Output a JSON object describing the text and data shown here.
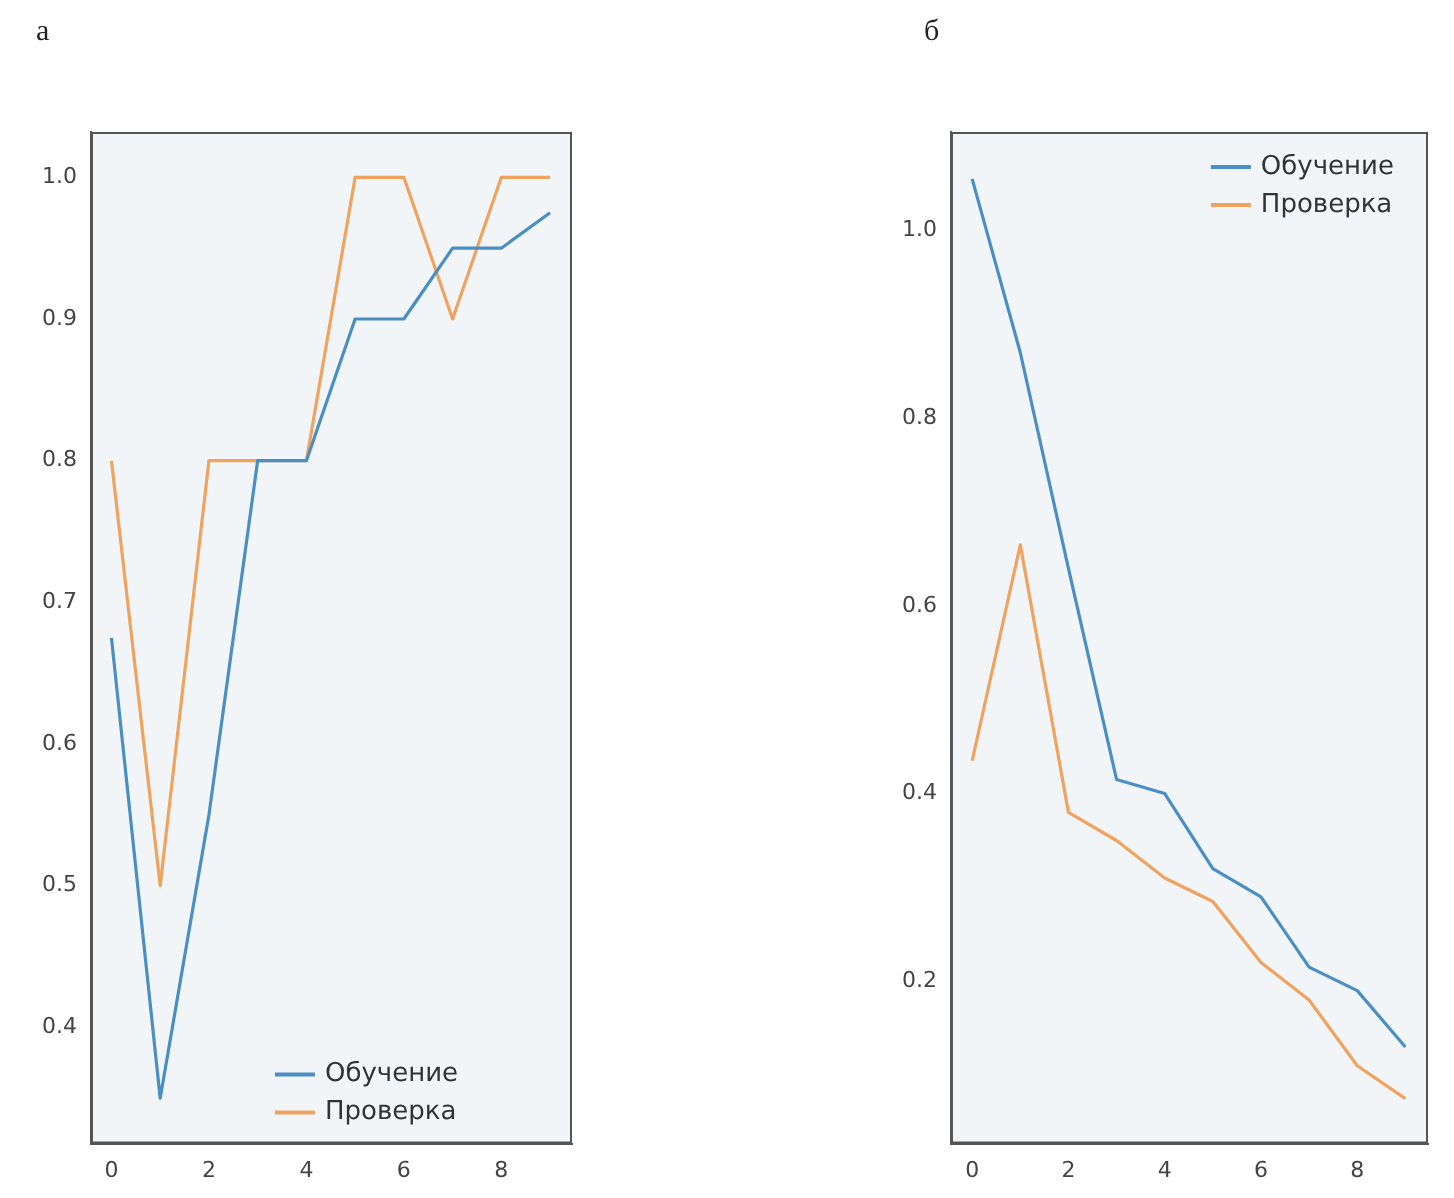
{
  "chart_data": [
    {
      "type": "line",
      "title": "а",
      "x": [
        0,
        1,
        2,
        3,
        4,
        5,
        6,
        7,
        8,
        9
      ],
      "xlim": [
        -0.42,
        9.45
      ],
      "xticks": [
        0,
        2,
        4,
        6,
        8
      ],
      "ylim": [
        0.318,
        1.032
      ],
      "yticks": [
        {
          "value": 0.4,
          "label": "0.4"
        },
        {
          "value": 0.5,
          "label": "0.5"
        },
        {
          "value": 0.6,
          "label": "0.6"
        },
        {
          "value": 0.7,
          "label": "0.7"
        },
        {
          "value": 0.8,
          "label": "0.8"
        },
        {
          "value": 0.9,
          "label": "0.9"
        },
        {
          "value": 1.0,
          "label": "1.0"
        }
      ],
      "legend": "bottom",
      "series": [
        {
          "name": "Обучение",
          "color": "#4a8fc4",
          "values": [
            0.675,
            0.35,
            0.55,
            0.8,
            0.8,
            0.9,
            0.9,
            0.95,
            0.95,
            0.975
          ]
        },
        {
          "name": "Проверка",
          "color": "#f0a35e",
          "values": [
            0.8,
            0.5,
            0.8,
            0.8,
            0.8,
            1.0,
            1.0,
            0.9,
            1.0,
            1.0
          ]
        }
      ]
    },
    {
      "type": "line",
      "title": "б",
      "x": [
        0,
        1,
        2,
        3,
        4,
        5,
        6,
        7,
        8,
        9
      ],
      "xlim": [
        -0.44,
        9.47
      ],
      "xticks": [
        0,
        2,
        4,
        6,
        8
      ],
      "ylim": [
        0.027,
        1.105
      ],
      "yticks": [
        {
          "value": 0.2,
          "label": "0.2"
        },
        {
          "value": 0.4,
          "label": "0.4"
        },
        {
          "value": 0.6,
          "label": "0.6"
        },
        {
          "value": 0.8,
          "label": "0.8"
        },
        {
          "value": 1.0,
          "label": "1.0"
        }
      ],
      "legend": "top right",
      "series": [
        {
          "name": "Обучение",
          "color": "#4a8fc4",
          "values": [
            1.055,
            0.87,
            0.64,
            0.415,
            0.4,
            0.32,
            0.29,
            0.215,
            0.19,
            0.13
          ]
        },
        {
          "name": "Проверка",
          "color": "#f0a35e",
          "values": [
            0.435,
            0.665,
            0.38,
            0.35,
            0.31,
            0.285,
            0.22,
            0.18,
            0.11,
            0.075
          ]
        }
      ]
    }
  ]
}
